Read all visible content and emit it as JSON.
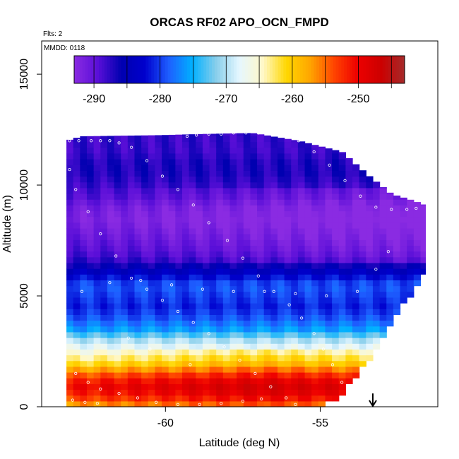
{
  "chart_data": {
    "type": "heatmap",
    "title": "ORCAS RF02 APO_OCN_FMPD",
    "annotations": {
      "flights": "Flts: 2",
      "date": "MMDD: 0118"
    },
    "xlabel": "Latitude (deg N)",
    "ylabel": "Altitude (m)",
    "xlim": [
      -64.0,
      -51.2
    ],
    "ylim": [
      0,
      16500
    ],
    "x_ticks": [
      -60,
      -55
    ],
    "x_tick_labels": [
      "-60",
      "-55"
    ],
    "y_ticks": [
      0,
      5000,
      10000,
      15000
    ],
    "y_tick_labels": [
      "0",
      "5000",
      "10000",
      "15000"
    ],
    "grid": false,
    "colorbar": {
      "range": [
        -293,
        -243
      ],
      "ticks": [
        -290,
        -280,
        -270,
        -260,
        -250
      ],
      "tick_labels": [
        "-290",
        "-280",
        "-270",
        "-260",
        "-250"
      ],
      "colors": [
        "#8a2be2",
        "#5a0fd8",
        "#0000b0",
        "#0000cd",
        "#1e5eff",
        "#00b0ff",
        "#87ceeb",
        "#e6f7ff",
        "#fff8c8",
        "#ffd700",
        "#ffa500",
        "#ff4500",
        "#ee0000",
        "#cc0000",
        "#a52a2a"
      ]
    },
    "field_profile": {
      "altitudes": [
        0,
        500,
        1000,
        1500,
        2000,
        2500,
        3000,
        3500,
        4000,
        4500,
        5000,
        5500,
        6000,
        6500,
        7000,
        7500,
        8000,
        8500,
        9000,
        9500,
        10000,
        10500,
        11000,
        11500,
        12000
      ],
      "values": [
        -258,
        -252,
        -250,
        -255,
        -262,
        -266,
        -270,
        -276,
        -279,
        -281,
        -280,
        -279,
        -283,
        -287,
        -289,
        -290,
        -291,
        -292,
        -291,
        -289,
        -288,
        -287,
        -287,
        -288,
        -288
      ]
    },
    "domain_top_profile": {
      "latitudes": [
        -63.2,
        -62.7,
        -60.2,
        -58.9,
        -57.2,
        -55.7,
        -54.3,
        -53.9,
        -53.5,
        -52.7,
        -52.0,
        -51.6
      ],
      "altitudes": [
        12000,
        12200,
        12250,
        12300,
        12350,
        12000,
        11500,
        11000,
        10500,
        9600,
        9300,
        9100
      ]
    },
    "domain_bottom_profile": {
      "latitudes": [
        -63.2,
        -62.7,
        -62.6,
        -55.2,
        -54.5,
        -53.6,
        -52.8,
        -52.2,
        -51.6
      ],
      "altitudes": [
        0,
        0,
        0,
        0,
        300,
        1800,
        3500,
        4800,
        6000
      ]
    },
    "flight_track_points": [
      [
        -63.1,
        12000
      ],
      [
        -62.8,
        12000
      ],
      [
        -62.4,
        12000
      ],
      [
        -62.1,
        12000
      ],
      [
        -61.8,
        12000
      ],
      [
        -61.5,
        11900
      ],
      [
        -61.1,
        11700
      ],
      [
        -60.6,
        11100
      ],
      [
        -60.1,
        10400
      ],
      [
        -59.6,
        9800
      ],
      [
        -59.1,
        9100
      ],
      [
        -58.6,
        8300
      ],
      [
        -58.0,
        7500
      ],
      [
        -57.5,
        6700
      ],
      [
        -57.0,
        5900
      ],
      [
        -56.5,
        5200
      ],
      [
        -56.0,
        4600
      ],
      [
        -55.6,
        4000
      ],
      [
        -55.2,
        3300
      ],
      [
        -54.9,
        2600
      ],
      [
        -54.6,
        1900
      ],
      [
        -54.3,
        1100
      ],
      [
        -54.0,
        500
      ],
      [
        -59.3,
        12200
      ],
      [
        -59.0,
        12250
      ],
      [
        -58.6,
        12300
      ],
      [
        -58.2,
        12300
      ],
      [
        -57.8,
        12350
      ],
      [
        -57.4,
        12350
      ],
      [
        -57.0,
        12350
      ],
      [
        -56.6,
        12300
      ],
      [
        -56.1,
        12300
      ],
      [
        -55.7,
        12000
      ],
      [
        -55.2,
        11500
      ],
      [
        -54.7,
        10900
      ],
      [
        -54.2,
        10200
      ],
      [
        -53.7,
        9500
      ],
      [
        -53.2,
        9000
      ],
      [
        -52.7,
        8900
      ],
      [
        -52.2,
        8900
      ],
      [
        -51.9,
        8950
      ],
      [
        -63.1,
        10700
      ],
      [
        -62.9,
        9800
      ],
      [
        -62.5,
        8800
      ],
      [
        -62.1,
        7800
      ],
      [
        -61.6,
        6800
      ],
      [
        -61.1,
        5800
      ],
      [
        -60.6,
        5300
      ],
      [
        -60.1,
        4800
      ],
      [
        -59.6,
        4300
      ],
      [
        -59.1,
        3800
      ],
      [
        -58.6,
        3300
      ],
      [
        -58.1,
        2700
      ],
      [
        -57.6,
        2100
      ],
      [
        -57.1,
        1500
      ],
      [
        -56.6,
        900
      ],
      [
        -56.1,
        400
      ],
      [
        -55.8,
        100
      ],
      [
        -62.7,
        5200
      ],
      [
        -61.8,
        5600
      ],
      [
        -60.8,
        5700
      ],
      [
        -59.8,
        5500
      ],
      [
        -58.8,
        5300
      ],
      [
        -57.8,
        5200
      ],
      [
        -56.8,
        5200
      ],
      [
        -55.8,
        5100
      ],
      [
        -54.8,
        5000
      ],
      [
        -53.8,
        5200
      ],
      [
        -53.2,
        6200
      ],
      [
        -52.8,
        7000
      ],
      [
        -62.9,
        1500
      ],
      [
        -62.5,
        1100
      ],
      [
        -62.1,
        800
      ],
      [
        -61.5,
        600
      ],
      [
        -60.9,
        400
      ],
      [
        -60.3,
        200
      ],
      [
        -59.6,
        100
      ],
      [
        -58.9,
        100
      ],
      [
        -58.2,
        150
      ],
      [
        -57.5,
        250
      ],
      [
        -56.9,
        350
      ],
      [
        -63.0,
        300
      ],
      [
        -62.6,
        200
      ],
      [
        -62.2,
        150
      ],
      [
        -59.2,
        1900
      ],
      [
        -60.5,
        2600
      ],
      [
        -61.2,
        3100
      ]
    ],
    "arrow_marker": {
      "latitude": -53.3
    }
  }
}
